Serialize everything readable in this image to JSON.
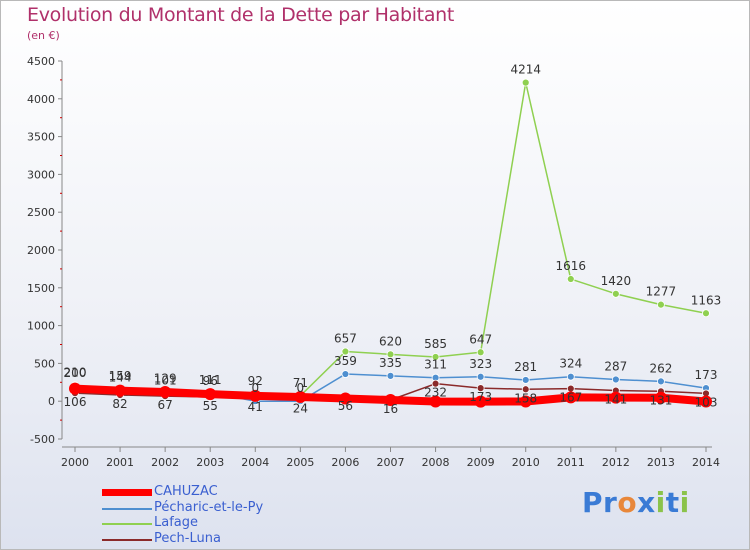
{
  "title": "Evolution du Montant de la Dette par Habitant",
  "subtitle": "(en €)",
  "logo": {
    "text": "Proxiti",
    "letters": [
      "P",
      "r",
      "o",
      "x",
      "i",
      "t",
      "i"
    ],
    "colors": [
      "#3a7bd5",
      "#3a7bd5",
      "#e8873a",
      "#3a7bd5",
      "#8bc34a",
      "#3a7bd5",
      "#8bc34a"
    ]
  },
  "chart_data": {
    "type": "line",
    "title": "Evolution du Montant de la Dette par Habitant",
    "subtitle": "(en €)",
    "xlabel": "",
    "ylabel": "",
    "ylim": [
      -500,
      4500
    ],
    "yticks": [
      -500,
      0,
      500,
      1000,
      1500,
      2000,
      2500,
      3000,
      3500,
      4000,
      4500
    ],
    "grid": false,
    "legend_position": "bottom-left",
    "x": [
      2000,
      2001,
      2002,
      2003,
      2004,
      2005,
      2006,
      2007,
      2008,
      2009,
      2010,
      2011,
      2012,
      2013,
      2014
    ],
    "series": [
      {
        "name": "CAHUZAC",
        "color": "#ff0000",
        "values": [
          166,
          140,
          121,
          94,
          70,
          56,
          35,
          16,
          -4,
          -5,
          -4,
          50,
          48,
          45,
          -4
        ],
        "labels": []
      },
      {
        "name": "Pécharic-et-le-Py",
        "color": "#4e8fd0",
        "values": [
          200,
          159,
          129,
          111,
          0,
          0,
          359,
          335,
          311,
          323,
          281,
          324,
          287,
          262,
          173
        ],
        "labels": [
          "200",
          "159",
          "129",
          "111",
          "0",
          "0",
          "359",
          "335",
          "311",
          "323",
          "281",
          "324",
          "287",
          "262",
          "173"
        ]
      },
      {
        "name": "Lafage",
        "color": "#8fd050",
        "values": [
          210,
          144,
          101,
          96,
          92,
          71,
          657,
          620,
          585,
          647,
          4214,
          1616,
          1420,
          1277,
          1163
        ],
        "labels": [
          "210",
          "144",
          "101",
          "96",
          "92",
          "71",
          "657",
          "620",
          "585",
          "647",
          "4214",
          "1616",
          "1420",
          "1277",
          "1163"
        ]
      },
      {
        "name": "Pech-Luna",
        "color": "#8b2a2a",
        "values": [
          106,
          82,
          67,
          55,
          41,
          24,
          56,
          16,
          232,
          173,
          158,
          167,
          141,
          131,
          103
        ],
        "labels": [
          "106",
          "82",
          "67",
          "55",
          "41",
          "24",
          "56",
          "16",
          "232",
          "173",
          "158",
          "167",
          "141",
          "131",
          "103"
        ]
      }
    ]
  }
}
